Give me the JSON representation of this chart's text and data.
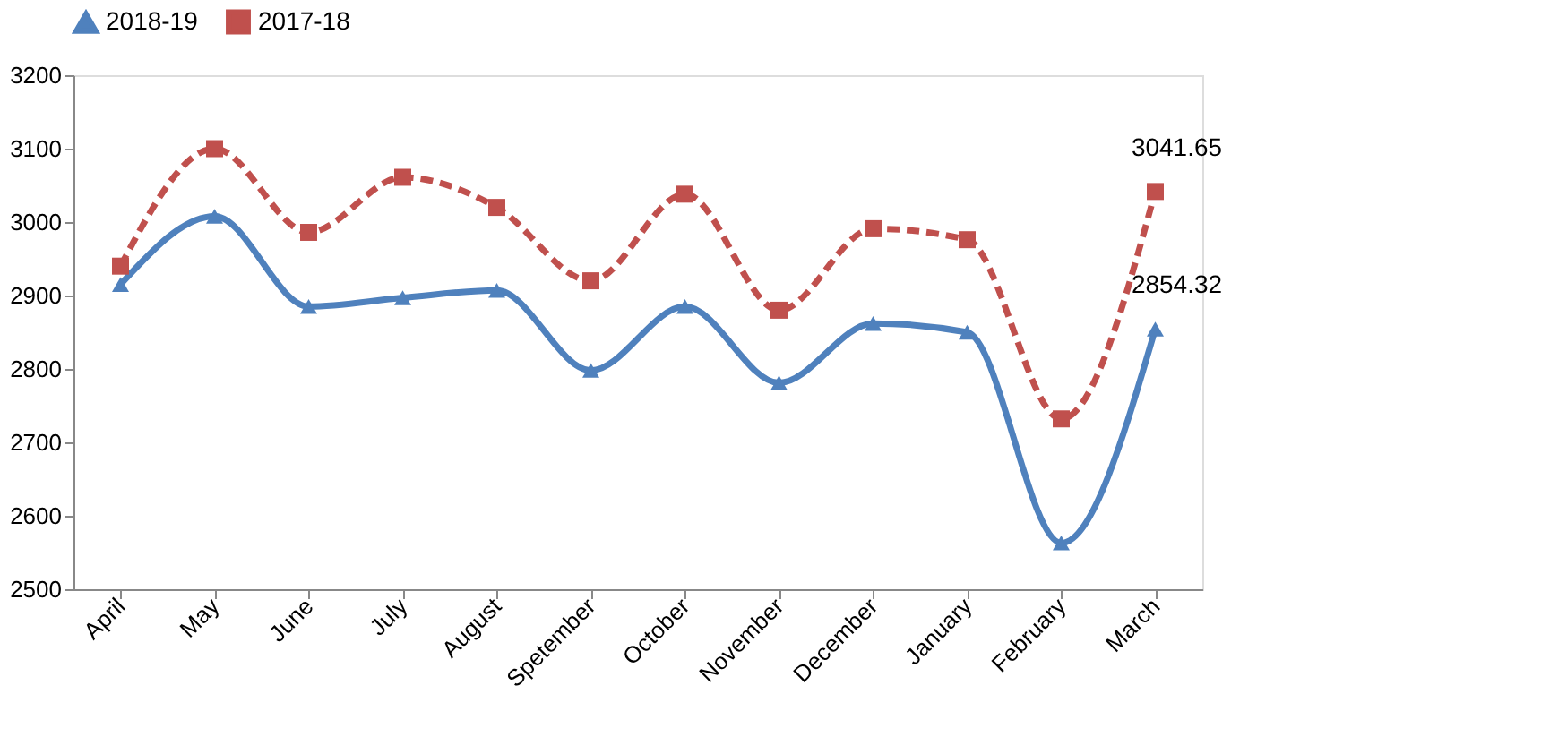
{
  "chart_data": {
    "type": "line",
    "categories": [
      "April",
      "May",
      "June",
      "July",
      "August",
      "Spetember",
      "October",
      "November",
      "December",
      "January",
      "February",
      "March"
    ],
    "series": [
      {
        "name": "2018-19",
        "color": "#4f81bd",
        "marker": "triangle",
        "line_style": "solid",
        "values": [
          2915,
          3008,
          2885,
          2897,
          2907,
          2798,
          2885,
          2781,
          2862,
          2850,
          2563,
          2854.32
        ],
        "value_labels": [
          null,
          null,
          null,
          null,
          null,
          null,
          null,
          null,
          null,
          null,
          null,
          "2854.32"
        ]
      },
      {
        "name": "2017-18",
        "color": "#c0504d",
        "marker": "square",
        "line_style": "dashed",
        "values": [
          2940,
          3100,
          2986,
          3061,
          3020,
          2920,
          3038,
          2880,
          2991,
          2976,
          2732,
          3041.65
        ],
        "value_labels": [
          null,
          null,
          null,
          null,
          null,
          null,
          null,
          null,
          null,
          null,
          null,
          "3041.65"
        ]
      }
    ],
    "ylim": [
      2500,
      3200
    ],
    "yticks": [
      2500,
      2600,
      2700,
      2800,
      2900,
      3000,
      3100,
      3200
    ],
    "grid": false,
    "legend": "top"
  }
}
